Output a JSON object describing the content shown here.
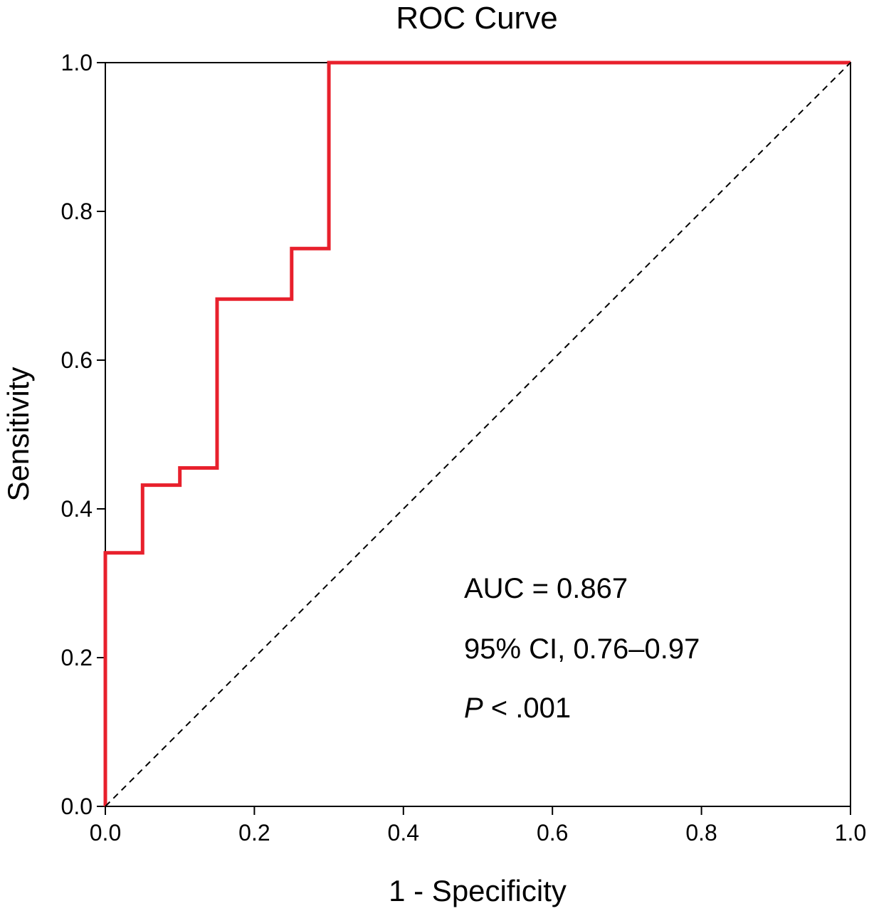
{
  "chart_data": {
    "type": "line",
    "title": "ROC  Curve",
    "xlabel": "1 - Specificity",
    "ylabel": "Sensitivity",
    "xlim": [
      0.0,
      1.0
    ],
    "ylim": [
      0.0,
      1.0
    ],
    "x_ticks": [
      "0.0",
      "0.2",
      "0.4",
      "0.6",
      "0.8",
      "1.0"
    ],
    "y_ticks": [
      "0.0",
      "0.2",
      "0.4",
      "0.6",
      "0.8",
      "1.0"
    ],
    "grid": false,
    "series": [
      {
        "color": "#e8202c",
        "style": "step",
        "points": [
          [
            0.0,
            0.0
          ],
          [
            0.0,
            0.341
          ],
          [
            0.05,
            0.341
          ],
          [
            0.05,
            0.432
          ],
          [
            0.1,
            0.432
          ],
          [
            0.1,
            0.455
          ],
          [
            0.15,
            0.455
          ],
          [
            0.15,
            0.682
          ],
          [
            0.25,
            0.682
          ],
          [
            0.25,
            0.75
          ],
          [
            0.3,
            0.75
          ],
          [
            0.3,
            1.0
          ],
          [
            1.0,
            1.0
          ]
        ]
      },
      {
        "color": "#000000",
        "style": "dashed",
        "points": [
          [
            0.0,
            0.0
          ],
          [
            1.0,
            1.0
          ]
        ]
      }
    ],
    "annotations": {
      "auc": "AUC = 0.867",
      "ci": "95% CI, 0.76–0.97",
      "p_italic": "P",
      "p_rest": " < .001"
    }
  }
}
